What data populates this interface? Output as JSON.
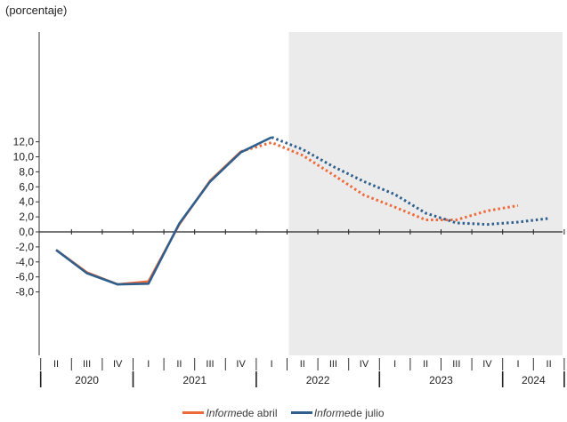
{
  "chart_data": {
    "type": "line",
    "unit_label": "(porcentaje)",
    "y_ticks": [
      "12,0",
      "10,0",
      "8,0",
      "6,0",
      "4,0",
      "2,0",
      "0,0",
      "-2,0",
      "-4,0",
      "-6,0",
      "-8,0"
    ],
    "ylim": [
      -8,
      13
    ],
    "quarter_labels": [
      "II",
      "III",
      "IV",
      "I",
      "II",
      "III",
      "IV",
      "I",
      "II",
      "III",
      "IV",
      "I",
      "II",
      "III",
      "IV",
      "I",
      "II"
    ],
    "year_labels": [
      "2020",
      "2021",
      "2022",
      "2023",
      "2024"
    ],
    "projection_shading_from_quarter_index": 7,
    "series": [
      {
        "name_emph": "Informe",
        "name_rest": " de abril",
        "color": "#ef6a3a",
        "actual": [
          -2.4,
          -5.4,
          -7.0,
          -6.6,
          1.0,
          6.8,
          10.7
        ],
        "projected": [
          10.7,
          11.9,
          10.2,
          7.6,
          4.9,
          3.3,
          1.6,
          1.6,
          2.8,
          3.5
        ]
      },
      {
        "name_emph": "Informe",
        "name_rest": " de julio",
        "color": "#2f5f8c",
        "actual": [
          -2.4,
          -5.5,
          -7.0,
          -6.9,
          1.1,
          6.7,
          10.6,
          12.6
        ],
        "projected": [
          12.6,
          11.0,
          8.7,
          6.7,
          5.0,
          2.5,
          1.2,
          1.0,
          1.3,
          1.8
        ]
      }
    ]
  }
}
